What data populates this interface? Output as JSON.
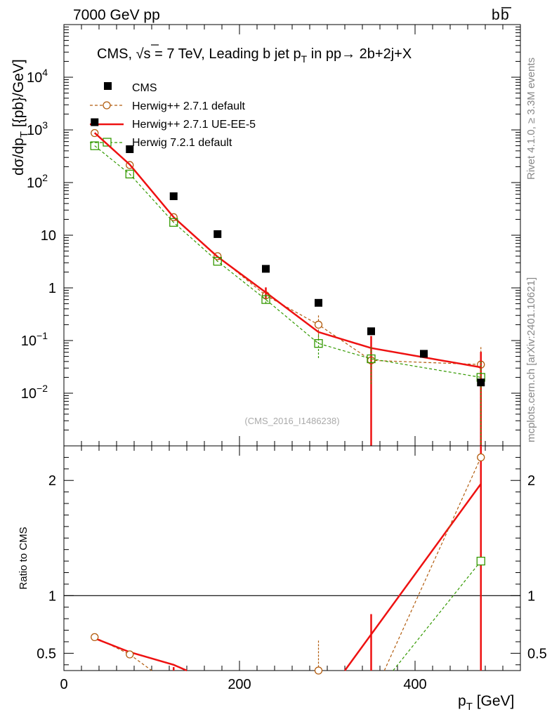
{
  "header": {
    "energy_label": "7000 GeV pp",
    "process_b": "b",
    "process_bbar": "b"
  },
  "side_labels": {
    "rivet": "Rivet 4.1.0, ≥ 3.3M events",
    "mcplots": "mcplots.cern.ch [arXiv:2401.10621]"
  },
  "analysis_id": "(CMS_2016_I1486238)",
  "colors": {
    "cms": "#000000",
    "herwig_default": "#b25c0e",
    "herwig_ueee5": "#ee1111",
    "herwig721": "#339900"
  },
  "chart_data": [
    {
      "type": "line",
      "title_prefix": "CMS, ",
      "title_sqrt": "√",
      "title_s": "s",
      "title_energy": " = 7 TeV, Leading b jet p",
      "title_sub": "T",
      "title_rest": " in pp→  2b+2j+X",
      "ylabel_main": "dσ/dp",
      "ylabel_sub": "T",
      "ylabel_unit": " [{pb}/GeV]",
      "xlabel_main": "p",
      "xlabel_sub": "T",
      "xlabel_unit": " [GeV]",
      "xlim": [
        0,
        520
      ],
      "ylim": [
        0.001,
        100000
      ],
      "yscale": "log",
      "y_ticks": [
        {
          "v": 0.01,
          "base": "10",
          "exp": "−2"
        },
        {
          "v": 0.1,
          "base": "10",
          "exp": "−1"
        },
        {
          "v": 1,
          "base": "1",
          "exp": ""
        },
        {
          "v": 10,
          "base": "10",
          "exp": ""
        },
        {
          "v": 100,
          "base": "10",
          "exp": "2"
        },
        {
          "v": 1000,
          "base": "10",
          "exp": "3"
        },
        {
          "v": 10000,
          "base": "10",
          "exp": "4"
        }
      ],
      "legend_position": "top-left",
      "series": [
        {
          "name": "CMS",
          "key": "cms",
          "style": "points",
          "marker": "filled-square",
          "x": [
            35,
            75,
            125,
            175,
            230,
            290,
            350,
            410,
            475
          ],
          "y": [
            1400,
            430,
            55,
            10.5,
            2.3,
            0.52,
            0.15,
            0.056,
            0.016
          ]
        },
        {
          "name": "Herwig++ 2.7.1 default",
          "key": "herwig_default",
          "style": "dashed",
          "marker": "open-circle",
          "x": [
            35,
            75,
            125,
            175,
            230,
            290,
            350,
            475
          ],
          "y": [
            870,
            215,
            22,
            4.0,
            0.72,
            0.2,
            0.042,
            0.035
          ],
          "err_up": [
            0,
            0,
            0,
            0,
            0.3,
            0.1,
            0.08,
            0.04
          ],
          "err_down": [
            0,
            0,
            0,
            0,
            0.2,
            0.09,
            0.042,
            0.035
          ]
        },
        {
          "name": "Herwig++ 2.7.1 UE-EE-5",
          "key": "herwig_ueee5",
          "style": "solid",
          "marker": "none",
          "x": [
            35,
            75,
            125,
            175,
            230,
            290,
            350,
            475
          ],
          "y": [
            880,
            220,
            22,
            3.9,
            0.82,
            0.145,
            0.072,
            0.031
          ],
          "err_up": [
            0,
            0,
            0,
            0,
            0.2,
            0,
            0.05,
            0.03
          ],
          "err_down": [
            0,
            0,
            0,
            0,
            0.2,
            0,
            0.072,
            0.031
          ]
        },
        {
          "name": "Herwig 7.2.1 default",
          "key": "herwig721",
          "style": "dashed",
          "marker": "open-square",
          "x": [
            35,
            75,
            125,
            175,
            230,
            290,
            350,
            475
          ],
          "y": [
            500,
            145,
            17.5,
            3.2,
            0.6,
            0.088,
            0.045,
            0.02
          ],
          "err_up": [
            0,
            0,
            0,
            0,
            0.15,
            0.04,
            0.03,
            0.02
          ],
          "err_down": [
            0,
            0,
            0,
            0,
            0.12,
            0.043,
            0.03,
            0.02
          ]
        }
      ]
    },
    {
      "type": "line",
      "ylabel": "Ratio to CMS",
      "xlim": [
        0,
        520
      ],
      "ylim": [
        0.35,
        2.3
      ],
      "x_ticks": [
        0,
        200,
        400
      ],
      "y_ticks": [
        0.5,
        1,
        2
      ],
      "y_tick_labels": [
        "0.5",
        "1",
        "2"
      ],
      "reference_line": 1,
      "series": [
        {
          "name": "Herwig++ 2.7.1 default",
          "key": "herwig_default",
          "style": "dashed",
          "marker": "open-circle",
          "x": [
            35,
            75,
            290,
            475
          ],
          "y": [
            0.64,
            0.49,
            0.35,
            2.2
          ],
          "err_up": [
            0,
            0,
            0.26,
            0
          ],
          "err_down": [
            0,
            0,
            0,
            0
          ]
        },
        {
          "name": "Herwig++ 2.7.1 UE-EE-5",
          "key": "herwig_ueee5",
          "style": "solid",
          "marker": "none",
          "x": [
            35,
            75,
            125,
            475
          ],
          "y": [
            0.63,
            0.51,
            0.4,
            1.97
          ],
          "err_up": [
            0,
            0,
            0,
            0
          ],
          "err_down": [
            0,
            0,
            0,
            0
          ]
        },
        {
          "name": "Herwig 7.2.1 default",
          "key": "herwig721",
          "style": "dashed",
          "marker": "open-square",
          "x": [
            475
          ],
          "y": [
            1.3
          ],
          "err_up": [
            0
          ],
          "err_down": [
            0
          ]
        }
      ]
    }
  ],
  "ratio_segments": {
    "ueee5_rise": {
      "x": [
        320,
        475
      ],
      "y": [
        0.35,
        1.97
      ]
    },
    "default_rise": {
      "x": [
        365,
        475
      ],
      "y": [
        0.35,
        2.2
      ]
    },
    "h721_rise": {
      "x": [
        375,
        475
      ],
      "y": [
        0.35,
        1.3
      ]
    },
    "ueee5_err_350": {
      "x": 350,
      "y_low": 0.35,
      "y_high": 0.84
    },
    "ueee5_err_125": {
      "x": 125,
      "y_low": 0.35,
      "y_high": 0.38
    }
  }
}
